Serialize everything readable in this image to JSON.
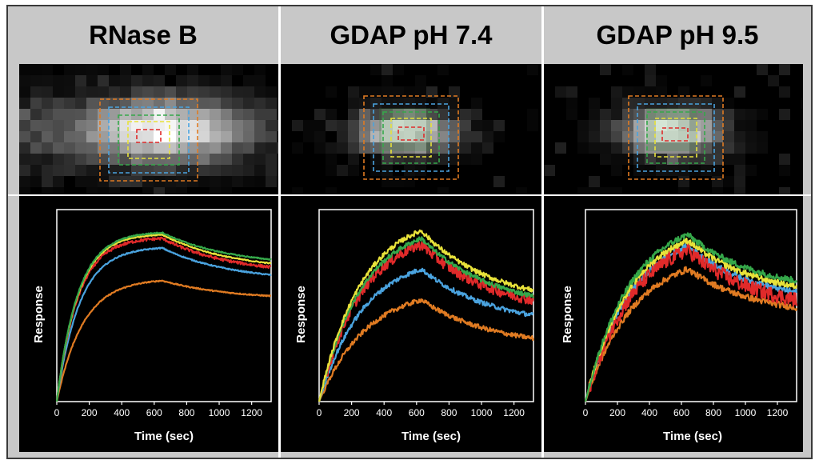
{
  "figure": {
    "colors": {
      "frame_bg": "#c8c8c8",
      "panel_bg": "#000000",
      "roi_orange": "#e07b22",
      "roi_blue": "#4aa3df",
      "roi_green": "#35a84a",
      "roi_yellow": "#e8e23a",
      "roi_red": "#e02a2a"
    },
    "panels": [
      {
        "title": "RNase B"
      },
      {
        "title": "GDAP pH 7.4"
      },
      {
        "title": "GDAP pH 9.5"
      }
    ]
  },
  "chart_data": [
    {
      "type": "line",
      "title": "RNase B",
      "xlabel": "Time (sec)",
      "ylabel": "Response",
      "xlim": [
        0,
        1320
      ],
      "ylim": [
        0,
        1
      ],
      "xticks": [
        "0",
        "200",
        "400",
        "600",
        "800",
        "1000",
        "1200"
      ],
      "peak_time": 650,
      "noise": 0.003,
      "series": [
        {
          "name": "green",
          "color": "#35a84a",
          "peak": 0.88,
          "tau": 130,
          "end": 0.74
        },
        {
          "name": "yellow",
          "color": "#e8e23a",
          "peak": 0.87,
          "tau": 130,
          "end": 0.72
        },
        {
          "name": "red",
          "color": "#e02a2a",
          "peak": 0.85,
          "tau": 130,
          "end": 0.7
        },
        {
          "name": "blue",
          "color": "#4aa3df",
          "peak": 0.8,
          "tau": 140,
          "end": 0.66
        },
        {
          "name": "orange",
          "color": "#e07b22",
          "peak": 0.63,
          "tau": 160,
          "end": 0.55
        }
      ]
    },
    {
      "type": "line",
      "title": "GDAP pH 7.4",
      "xlabel": "Time (sec)",
      "ylabel": "Response",
      "xlim": [
        0,
        1320
      ],
      "ylim": [
        0,
        1
      ],
      "xticks": [
        "0",
        "200",
        "400",
        "600",
        "800",
        "1000",
        "1200"
      ],
      "peak_time": 630,
      "noise": 0.012,
      "series": [
        {
          "name": "yellow",
          "color": "#e8e23a",
          "peak": 0.89,
          "tau": 260,
          "end": 0.58
        },
        {
          "name": "green",
          "color": "#35a84a",
          "peak": 0.85,
          "tau": 260,
          "end": 0.55
        },
        {
          "name": "red",
          "color": "#e02a2a",
          "peak": 0.82,
          "tau": 260,
          "end": 0.53
        },
        {
          "name": "blue",
          "color": "#4aa3df",
          "peak": 0.69,
          "tau": 270,
          "end": 0.45
        },
        {
          "name": "orange",
          "color": "#e07b22",
          "peak": 0.53,
          "tau": 290,
          "end": 0.33
        }
      ]
    },
    {
      "type": "line",
      "title": "GDAP pH 9.5",
      "xlabel": "Time (sec)",
      "ylabel": "Response",
      "xlim": [
        0,
        1320
      ],
      "ylim": [
        0,
        1
      ],
      "xticks": [
        "0",
        "200",
        "400",
        "600",
        "800",
        "1000",
        "1200"
      ],
      "peak_time": 640,
      "noise": 0.016,
      "series": [
        {
          "name": "green",
          "color": "#35a84a",
          "peak": 0.87,
          "tau": 280,
          "end": 0.63
        },
        {
          "name": "yellow",
          "color": "#e8e23a",
          "peak": 0.84,
          "tau": 280,
          "end": 0.6
        },
        {
          "name": "red",
          "color": "#e02a2a",
          "peak": 0.79,
          "tau": 300,
          "end": 0.53
        },
        {
          "name": "blue",
          "color": "#4aa3df",
          "peak": 0.81,
          "tau": 290,
          "end": 0.57
        },
        {
          "name": "orange",
          "color": "#e07b22",
          "peak": 0.69,
          "tau": 300,
          "end": 0.49
        }
      ]
    }
  ]
}
